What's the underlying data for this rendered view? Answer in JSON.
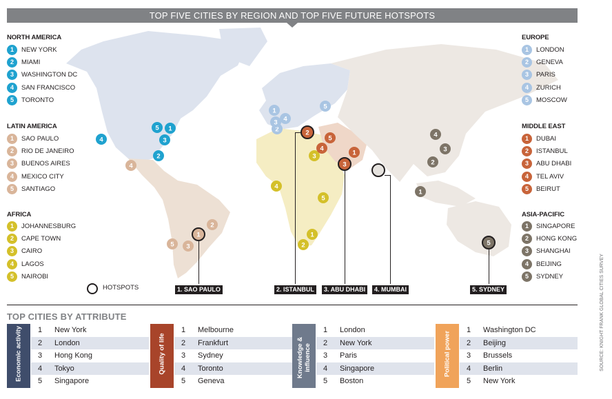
{
  "title": "TOP FIVE CITIES BY REGION AND TOP FIVE FUTURE HOTSPOTS",
  "colors": {
    "north_america": "#1fa2cf",
    "latin_america": "#d9b59a",
    "africa": "#d4c02a",
    "europe": "#a9c5e3",
    "middle_east": "#c8643a",
    "asia_pacific": "#7d7467",
    "attr_economic": "#3f4d6b",
    "attr_quality": "#a8442a",
    "attr_knowledge": "#6f7a8c",
    "attr_political": "#f0a35a"
  },
  "regions": {
    "north_america": {
      "title": "NORTH AMERICA",
      "cities": [
        "NEW YORK",
        "MIAMI",
        "WASHINGTON DC",
        "SAN FRANCISCO",
        "TORONTO"
      ]
    },
    "latin_america": {
      "title": "LATIN AMERICA",
      "cities": [
        "SAO PAULO",
        "RIO DE JANEIRO",
        "BUENOS AIRES",
        "MEXICO CITY",
        "SANTIAGO"
      ]
    },
    "africa": {
      "title": "AFRICA",
      "cities": [
        "JOHANNESBURG",
        "CAPE TOWN",
        "CAIRO",
        "LAGOS",
        "NAIROBI"
      ]
    },
    "europe": {
      "title": "EUROPE",
      "cities": [
        "LONDON",
        "GENEVA",
        "PARIS",
        "ZURICH",
        "MOSCOW"
      ]
    },
    "middle_east": {
      "title": "MIDDLE EAST",
      "cities": [
        "DUBAI",
        "ISTANBUL",
        "ABU DHABI",
        "TEL AVIV",
        "BEIRUT"
      ]
    },
    "asia_pacific": {
      "title": "ASIA-PACIFIC",
      "cities": [
        "SINGAPORE",
        "HONG KONG",
        "SHANGHAI",
        "BEIJING",
        "SYDNEY"
      ]
    }
  },
  "hotspots_label": "HOTSPOTS",
  "hotspots": [
    "1. SAO PAULO",
    "2. ISTANBUL",
    "3. ABU DHABI",
    "4. MUMBAI",
    "5. SYDNEY"
  ],
  "attributes_title": "TOP CITIES BY ATTRIBUTE",
  "attributes": [
    {
      "category": "Economic activity",
      "cities": [
        "New York",
        "London",
        "Hong Kong",
        "Tokyo",
        "Singapore"
      ]
    },
    {
      "category": "Quality of life",
      "cities": [
        "Melbourne",
        "Frankfurt",
        "Sydney",
        "Toronto",
        "Geneva"
      ]
    },
    {
      "category": "Knowledge & influence",
      "cities": [
        "London",
        "New York",
        "Paris",
        "Singapore",
        "Boston"
      ]
    },
    {
      "category": "Political power",
      "cities": [
        "Washington DC",
        "Beijing",
        "Brussels",
        "Berlin",
        "New York"
      ]
    }
  ],
  "source": "SOURCE: KNIGHT FRANK GLOBAL CITIES SURVEY"
}
